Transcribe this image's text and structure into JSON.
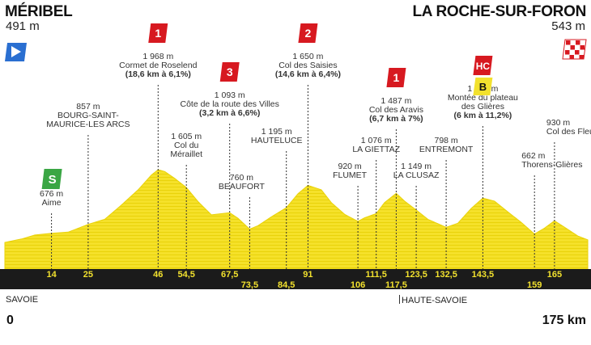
{
  "stage": {
    "start": {
      "name": "MÉRIBEL",
      "altitude": "491 m"
    },
    "finish": {
      "name": "LA ROCHE-SUR-FORON",
      "altitude": "543 m"
    },
    "regions": [
      {
        "name": "SAVOIE",
        "km": 0
      },
      {
        "name": "HAUTE-SAVOIE",
        "km": 117.5
      }
    ],
    "distance_start": "0",
    "distance_end": "175 km"
  },
  "colors": {
    "profile_fill": "#f5e12a",
    "profile_stripe": "#e9d20a",
    "axis_band": "#1b1b1b",
    "axis_text": "#f2e12e",
    "climb_cat": "#d71920",
    "climb_hc": "#d71920",
    "bonus_b": "#f2e12e",
    "sprint": "#3aa644",
    "start_flag": "#2a6fd1"
  },
  "chart_data": {
    "type": "area",
    "xlabel": "",
    "ylabel": "",
    "xlim": [
      0,
      175
    ],
    "ylim": [
      350,
      2100
    ],
    "profile": [
      [
        0,
        491
      ],
      [
        5,
        560
      ],
      [
        9,
        640
      ],
      [
        14,
        676
      ],
      [
        19,
        700
      ],
      [
        25,
        857
      ],
      [
        30,
        960
      ],
      [
        35,
        1250
      ],
      [
        40,
        1560
      ],
      [
        44,
        1860
      ],
      [
        46,
        1968
      ],
      [
        48,
        1930
      ],
      [
        51,
        1790
      ],
      [
        54.5,
        1605
      ],
      [
        58,
        1320
      ],
      [
        62,
        1050
      ],
      [
        67.5,
        1093
      ],
      [
        70,
        980
      ],
      [
        73.5,
        760
      ],
      [
        76,
        830
      ],
      [
        80,
        1010
      ],
      [
        84.5,
        1195
      ],
      [
        88,
        1480
      ],
      [
        91,
        1650
      ],
      [
        95,
        1560
      ],
      [
        98,
        1300
      ],
      [
        102,
        1060
      ],
      [
        106,
        920
      ],
      [
        108,
        990
      ],
      [
        111.5,
        1076
      ],
      [
        114,
        1300
      ],
      [
        117.5,
        1487
      ],
      [
        120,
        1330
      ],
      [
        123.5,
        1149
      ],
      [
        127,
        960
      ],
      [
        132.5,
        798
      ],
      [
        136,
        880
      ],
      [
        140,
        1180
      ],
      [
        143.5,
        1390
      ],
      [
        147,
        1330
      ],
      [
        151,
        1110
      ],
      [
        155,
        900
      ],
      [
        159,
        662
      ],
      [
        162,
        780
      ],
      [
        165,
        930
      ],
      [
        168,
        800
      ],
      [
        172,
        620
      ],
      [
        175,
        543
      ]
    ],
    "km_ticks": [
      "14",
      "25",
      "46",
      "54,5",
      "67,5",
      "73,5",
      "84,5",
      "91",
      "106",
      "111,5",
      "117,5",
      "123,5",
      "132,5",
      "143,5",
      "159",
      "165"
    ],
    "points": [
      {
        "km": 14,
        "label": "Aime",
        "alt": "676 m",
        "marker": "sprint",
        "marker_text": "S"
      },
      {
        "km": 25,
        "label": "BOURG-SAINT-\nMAURICE-LES ARCS",
        "alt": "857 m"
      },
      {
        "km": 46,
        "label": "Cormet de Roselend",
        "alt": "1 968 m",
        "detail": "(18,6 km à 6,1%)",
        "marker": "cat",
        "marker_text": "1"
      },
      {
        "km": 54.5,
        "label": "Col du\nMéraillet",
        "alt": "1 605 m"
      },
      {
        "km": 67.5,
        "label": "Côte de la route des Villes",
        "alt": "1 093 m",
        "detail": "(3,2 km à 6,6%)",
        "marker": "cat",
        "marker_text": "3"
      },
      {
        "km": 73.5,
        "label": "BEAUFORT",
        "alt": "760 m"
      },
      {
        "km": 84.5,
        "label": "HAUTELUCE",
        "alt": "1 195 m"
      },
      {
        "km": 91,
        "label": "Col des Saisies",
        "alt": "1 650 m",
        "detail": "(14,6 km à 6,4%)",
        "marker": "cat",
        "marker_text": "2"
      },
      {
        "km": 106,
        "label": "FLUMET",
        "alt": "920 m"
      },
      {
        "km": 111.5,
        "label": "LA GIETTAZ",
        "alt": "1 076 m"
      },
      {
        "km": 117.5,
        "label": "Col des Aravis",
        "alt": "1 487 m",
        "detail": "(6,7 km à 7%)",
        "marker": "cat",
        "marker_text": "1"
      },
      {
        "km": 123.5,
        "label": "LA CLUSAZ",
        "alt": "1 149 m"
      },
      {
        "km": 132.5,
        "label": "ENTREMONT",
        "alt": "798 m"
      },
      {
        "km": 143.5,
        "label": "Montée du plateau\ndes Glières",
        "alt": "1 390 m",
        "detail": "(6 km à 11,2%)",
        "marker": "hc",
        "marker_text": "HC",
        "bonus": "B"
      },
      {
        "km": 159,
        "label": "Thorens-Glières",
        "alt": "662 m"
      },
      {
        "km": 165,
        "label": "Col des Fleuries",
        "alt": "930 m"
      }
    ]
  }
}
